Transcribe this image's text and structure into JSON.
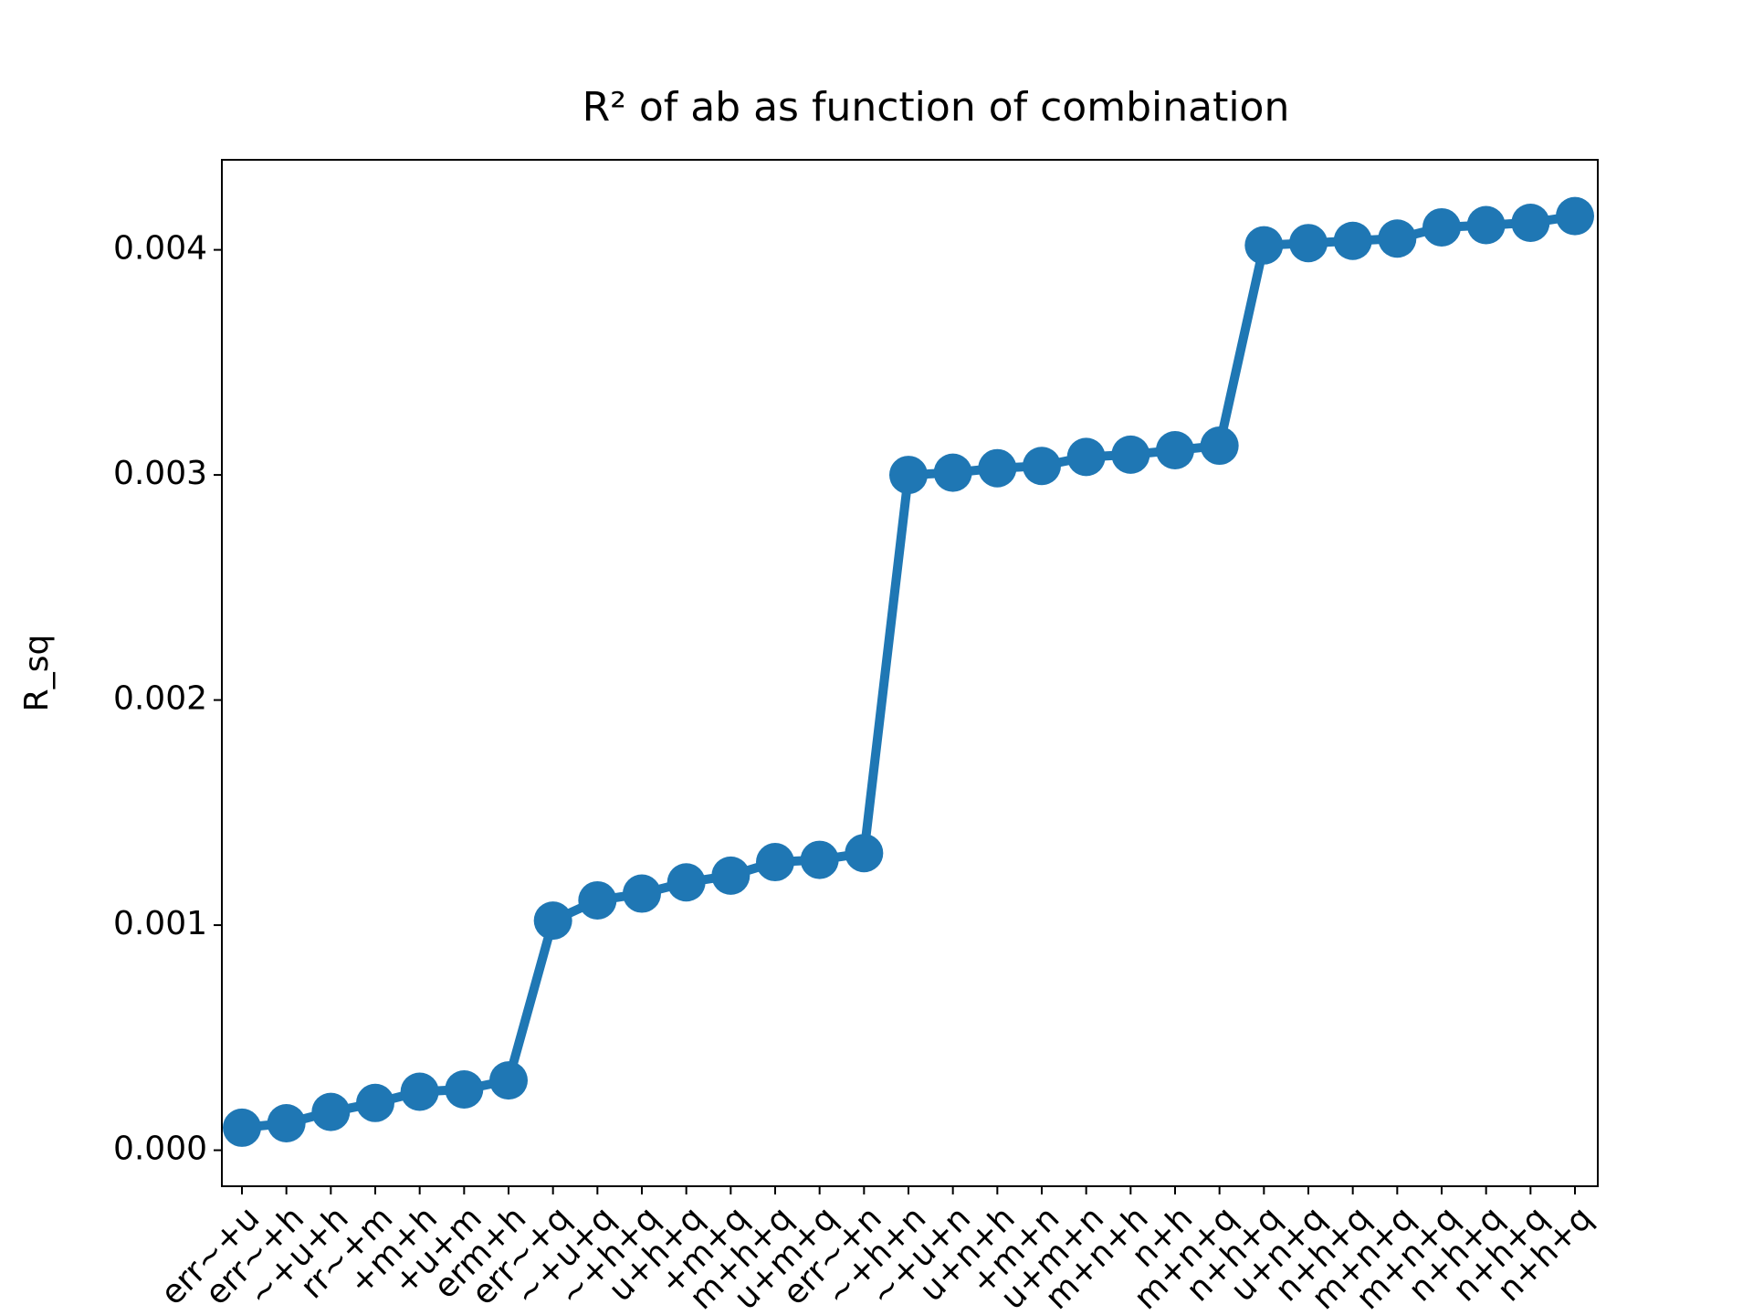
{
  "chart_data": {
    "type": "line",
    "title": "R² of ab as function of combination",
    "y_label": "R_sq",
    "categories": [
      "err~+u",
      "err~+h",
      "~+u+h",
      "rr~+m",
      "+m+h",
      "+u+m",
      "erm+h",
      "err~+q",
      "~+u+q",
      "~+h+q",
      "u+h+q",
      "+m+q",
      "m+h+q",
      "u+m+q",
      "err~+n",
      "~+h+n",
      "~+u+n",
      "u+n+h",
      "+m+n",
      "u+m+n",
      "m+n+h",
      "n+h",
      "m+n+q",
      "n+h+q",
      "u+n+q",
      "n+h+q",
      "m+n+q",
      "m+n+q",
      "n+h+q",
      "n+h+q",
      "n+h+q"
    ],
    "series": [
      {
        "name": "R_sq",
        "color": "#1f77b4",
        "values": [
          0.0001,
          0.00012,
          0.00017,
          0.00021,
          0.00026,
          0.00027,
          0.00031,
          0.00102,
          0.00111,
          0.00114,
          0.00119,
          0.00122,
          0.00128,
          0.00129,
          0.00132,
          0.003,
          0.00301,
          0.00303,
          0.00304,
          0.00308,
          0.00309,
          0.00311,
          0.00313,
          0.00402,
          0.00403,
          0.00404,
          0.00405,
          0.0041,
          0.00411,
          0.00412,
          0.00415
        ]
      }
    ],
    "ylim": [
      -0.00016,
      0.0044
    ],
    "yticks": [
      {
        "value": 0,
        "label": "0.000"
      },
      {
        "value": 0.001,
        "label": "0.001"
      },
      {
        "value": 0.002,
        "label": "0.002"
      },
      {
        "value": 0.003,
        "label": "0.003"
      },
      {
        "value": 0.004,
        "label": "0.004"
      }
    ],
    "grid": false
  }
}
